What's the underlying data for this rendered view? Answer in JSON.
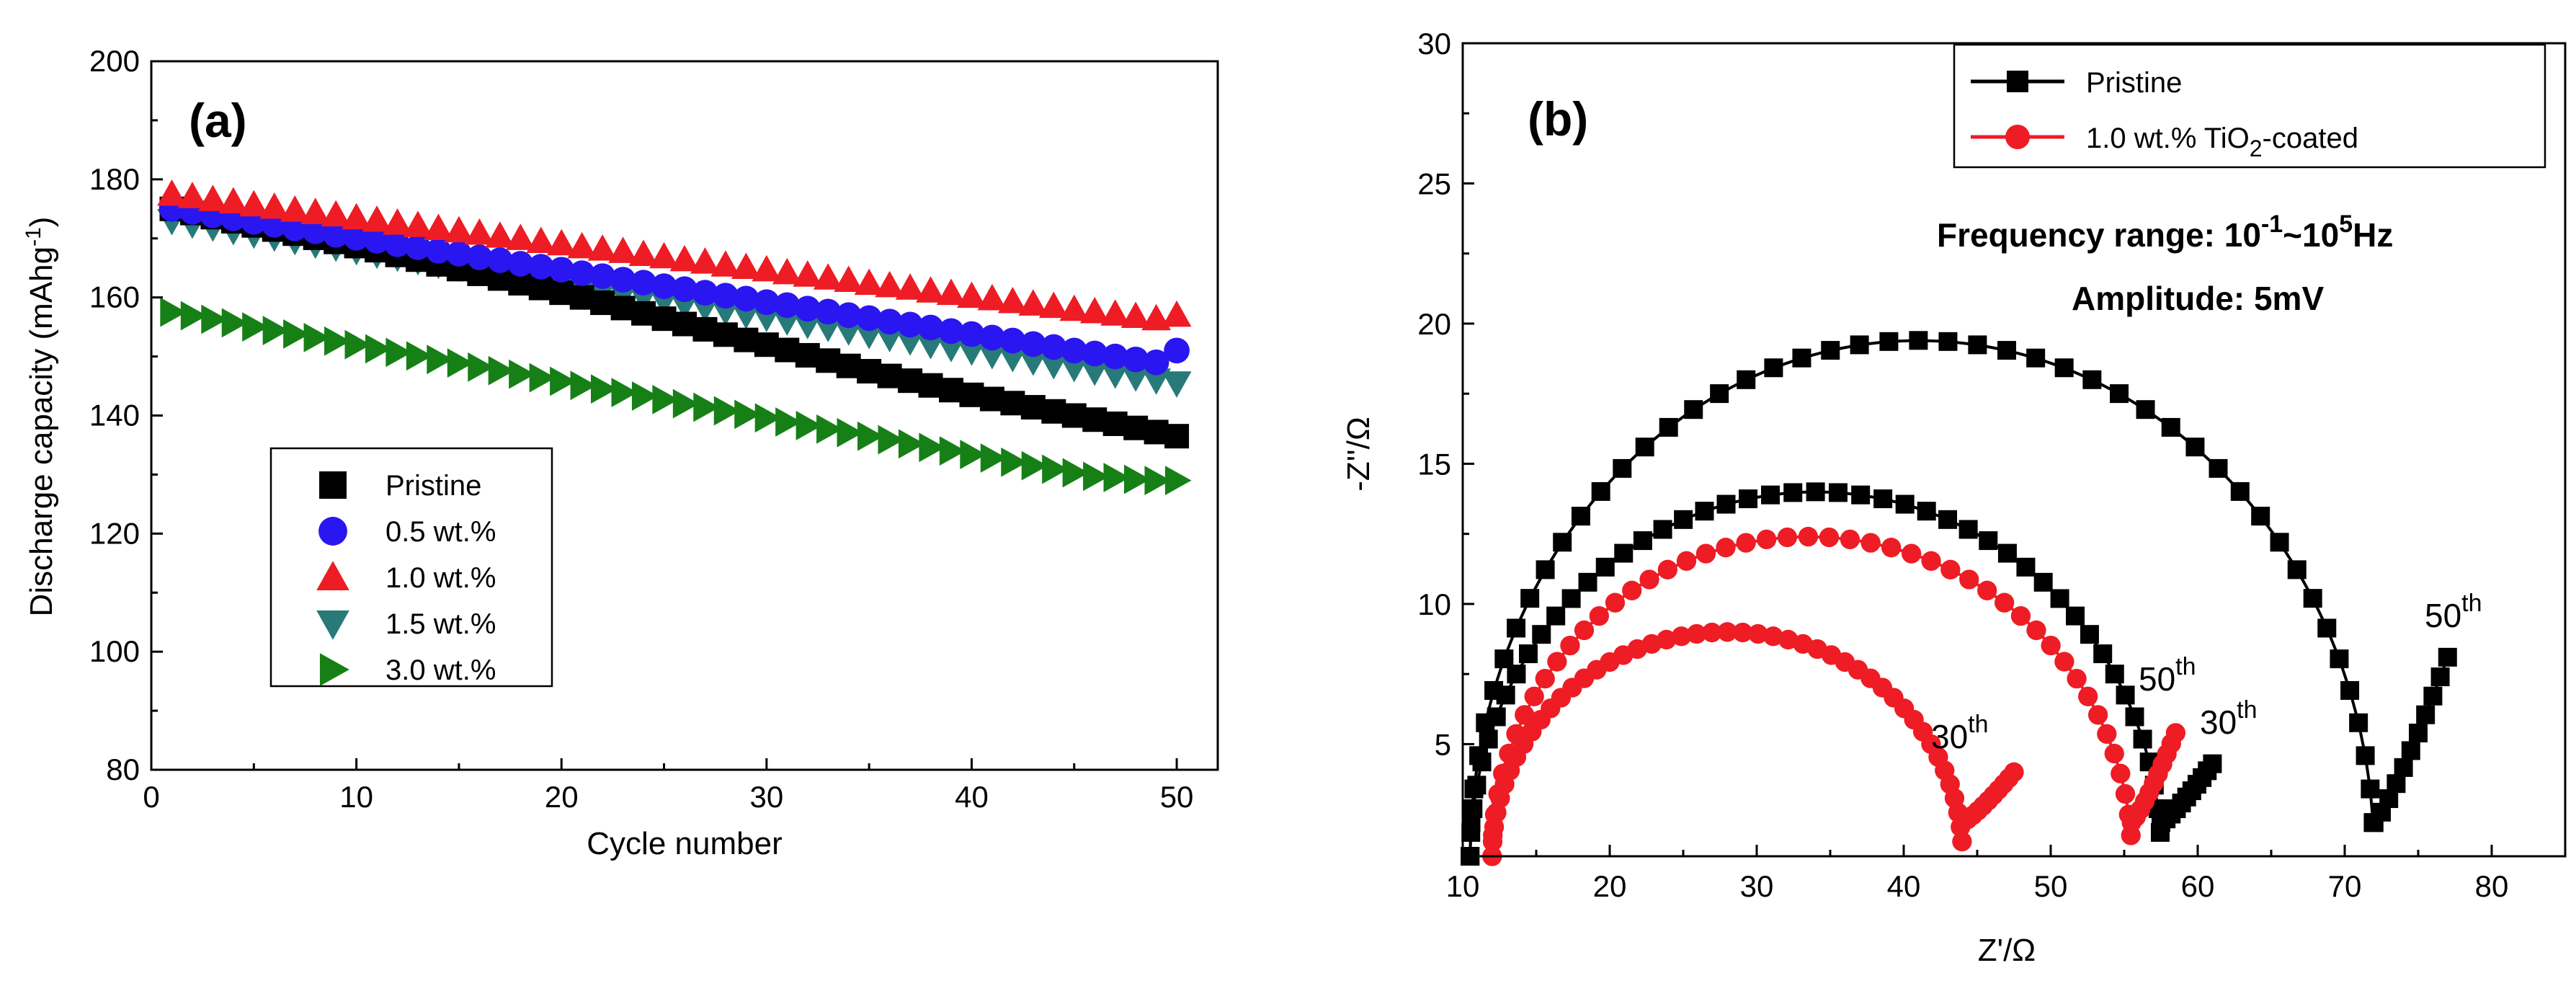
{
  "colors": {
    "pristine": "#000000",
    "w05": "#2a16f0",
    "w10": "#ee1c24",
    "w15": "#277a79",
    "w30": "#168016"
  },
  "panel_a": {
    "label": "(a)",
    "legend": [
      "Pristine",
      "0.5 wt.%",
      "1.0 wt.%",
      "1.5 wt.%",
      "3.0 wt.%"
    ]
  },
  "panel_b": {
    "label": "(b)",
    "legend": [
      "Pristine",
      "1.0 wt.% TiO",
      "2",
      "-coated"
    ],
    "info_line1": {
      "prefix": "Frequency range: 10",
      "exp1": "-1",
      "mid": "~10",
      "exp2": "5",
      "suffix": "Hz"
    },
    "info_line2": "Amplitude:  5mV",
    "annotations": [
      {
        "id": "black-50",
        "base": "50",
        "sup": "th"
      },
      {
        "id": "red-50",
        "base": "50",
        "sup": "th"
      },
      {
        "id": "black-30",
        "base": "30",
        "sup": "th"
      },
      {
        "id": "red-30",
        "base": "30",
        "sup": "th"
      }
    ]
  },
  "chart_data": [
    {
      "type": "scatter",
      "title": "(a)",
      "xlabel": "Cycle number",
      "ylabel": "Discharge capacity (mAhg",
      "ylabel_sup": "-1",
      "ylabel_suffix": ")",
      "xlim": [
        0,
        52
      ],
      "ylim": [
        80,
        200
      ],
      "xticks": [
        0,
        10,
        20,
        30,
        40,
        50
      ],
      "yticks": [
        80,
        100,
        120,
        140,
        160,
        180,
        200
      ],
      "x": [
        1,
        2,
        3,
        4,
        5,
        6,
        7,
        8,
        9,
        10,
        11,
        12,
        13,
        14,
        15,
        16,
        17,
        18,
        19,
        20,
        21,
        22,
        23,
        24,
        25,
        26,
        27,
        28,
        29,
        30,
        31,
        32,
        33,
        34,
        35,
        36,
        37,
        38,
        39,
        40,
        41,
        42,
        43,
        44,
        45,
        46,
        47,
        48,
        49,
        50
      ],
      "legend_position": "lower-left",
      "series": [
        {
          "name": "Pristine",
          "marker": "square",
          "color": "#000000",
          "values": [
            175,
            174.3,
            173.6,
            172.9,
            172.2,
            171.5,
            170.8,
            170.1,
            169.4,
            168.7,
            168,
            167.2,
            166.4,
            165.6,
            164.8,
            164,
            163.2,
            162.4,
            161.6,
            160.8,
            160,
            159.1,
            158.2,
            157.3,
            156.4,
            155.5,
            154.6,
            153.7,
            152.8,
            152,
            151.1,
            150.2,
            149.3,
            148.4,
            147.5,
            146.7,
            145.9,
            145.1,
            144.3,
            143.5,
            142.8,
            142.1,
            141.4,
            140.7,
            140,
            139.3,
            138.6,
            137.9,
            137.2,
            136.5
          ]
        },
        {
          "name": "0.5 wt.%",
          "marker": "circle",
          "color": "#2a16f0",
          "values": [
            175,
            174.5,
            173.9,
            173.4,
            172.8,
            172.3,
            171.7,
            171.2,
            170.6,
            170.1,
            169.6,
            169,
            168.5,
            167.9,
            167.4,
            166.8,
            166.3,
            165.7,
            165.2,
            164.7,
            164.1,
            163.6,
            163,
            162.5,
            161.9,
            161.4,
            160.8,
            160.3,
            159.8,
            159.2,
            158.7,
            158.1,
            157.6,
            157,
            156.5,
            155.9,
            155.4,
            154.9,
            154.3,
            153.8,
            153.2,
            152.7,
            152.1,
            151.6,
            151,
            150.5,
            150,
            149.5,
            149,
            151
          ]
        },
        {
          "name": "1.0 wt.%",
          "marker": "triangle-up",
          "color": "#ee1c24",
          "values": [
            177.5,
            177.1,
            176.6,
            176.2,
            175.7,
            175.3,
            174.8,
            174.4,
            174,
            173.5,
            173.1,
            172.6,
            172.2,
            171.7,
            171.3,
            170.9,
            170.4,
            170,
            169.5,
            169.1,
            168.6,
            168.2,
            167.8,
            167.3,
            166.9,
            166.4,
            166,
            165.5,
            165.1,
            164.7,
            164.2,
            163.8,
            163.3,
            162.9,
            162.4,
            162,
            161.6,
            161.1,
            160.7,
            160.2,
            159.8,
            159.3,
            158.9,
            158.5,
            158,
            157.6,
            157.2,
            156.8,
            156.4,
            157
          ]
        },
        {
          "name": "1.5 wt.%",
          "marker": "triangle-down",
          "color": "#277a79",
          "values": [
            173,
            172.4,
            171.9,
            171.3,
            170.7,
            170.2,
            169.6,
            169,
            168.5,
            167.9,
            167.3,
            166.8,
            166.2,
            165.6,
            165.1,
            164.5,
            163.9,
            163.4,
            162.8,
            162.2,
            161.7,
            161.1,
            160.5,
            160,
            159.4,
            158.8,
            158.3,
            157.7,
            157.1,
            156.6,
            156,
            155.4,
            154.9,
            154.3,
            153.7,
            153.2,
            152.6,
            152,
            151.5,
            150.9,
            150.3,
            149.8,
            149.2,
            148.6,
            148.1,
            147.5,
            147,
            146.5,
            146,
            145.5
          ]
        },
        {
          "name": "3.0 wt.%",
          "marker": "triangle-right",
          "color": "#168016",
          "values": [
            157.5,
            156.9,
            156.3,
            155.7,
            155,
            154.4,
            153.8,
            153.2,
            152.6,
            152,
            151.3,
            150.7,
            150.1,
            149.5,
            148.9,
            148.2,
            147.6,
            147,
            146.4,
            145.8,
            145.1,
            144.5,
            143.9,
            143.3,
            142.7,
            142,
            141.4,
            140.8,
            140.2,
            139.6,
            138.9,
            138.3,
            137.7,
            137.1,
            136.5,
            135.9,
            135.2,
            134.6,
            134,
            133.4,
            132.8,
            132.1,
            131.5,
            130.9,
            130.3,
            129.7,
            129.5,
            129.2,
            129,
            129
          ]
        }
      ]
    },
    {
      "type": "line",
      "title": "(b)",
      "xlabel": "Z'/Ω",
      "ylabel": "-Z''/Ω",
      "xlim": [
        10,
        85
      ],
      "ylim": [
        1,
        30
      ],
      "xticks": [
        10,
        20,
        30,
        40,
        50,
        60,
        70,
        80
      ],
      "yticks": [
        5,
        10,
        15,
        20,
        25,
        30
      ],
      "legend_position": "top-left",
      "series": [
        {
          "name": "Pristine",
          "cycle": "50th",
          "marker": "square",
          "color": "#000000",
          "arc": {
            "x_start": 10.5,
            "x_end": 72,
            "peak_x": 41,
            "peak_y": 19.4,
            "tail_x_end": 77,
            "tail_y_end": 8.1
          }
        },
        {
          "name": "Pristine",
          "cycle": "30th",
          "marker": "square",
          "color": "#000000",
          "arc": {
            "x_start": 10.5,
            "x_end": 57.5,
            "peak_x": 34,
            "peak_y": 14,
            "tail_x_end": 61,
            "tail_y_end": 4.3
          }
        },
        {
          "name": "1.0 wt.% TiO2-coated",
          "cycle": "50th",
          "marker": "circle",
          "color": "#ee1c24",
          "arc": {
            "x_start": 12,
            "x_end": 55.5,
            "peak_x": 33.5,
            "peak_y": 12.4,
            "tail_x_end": 58.5,
            "tail_y_end": 5.4
          }
        },
        {
          "name": "1.0 wt.% TiO2-coated",
          "cycle": "30th",
          "marker": "circle",
          "color": "#ee1c24",
          "arc": {
            "x_start": 12,
            "x_end": 44,
            "peak_x": 28,
            "peak_y": 9,
            "tail_x_end": 47.5,
            "tail_y_end": 4
          }
        }
      ]
    }
  ]
}
